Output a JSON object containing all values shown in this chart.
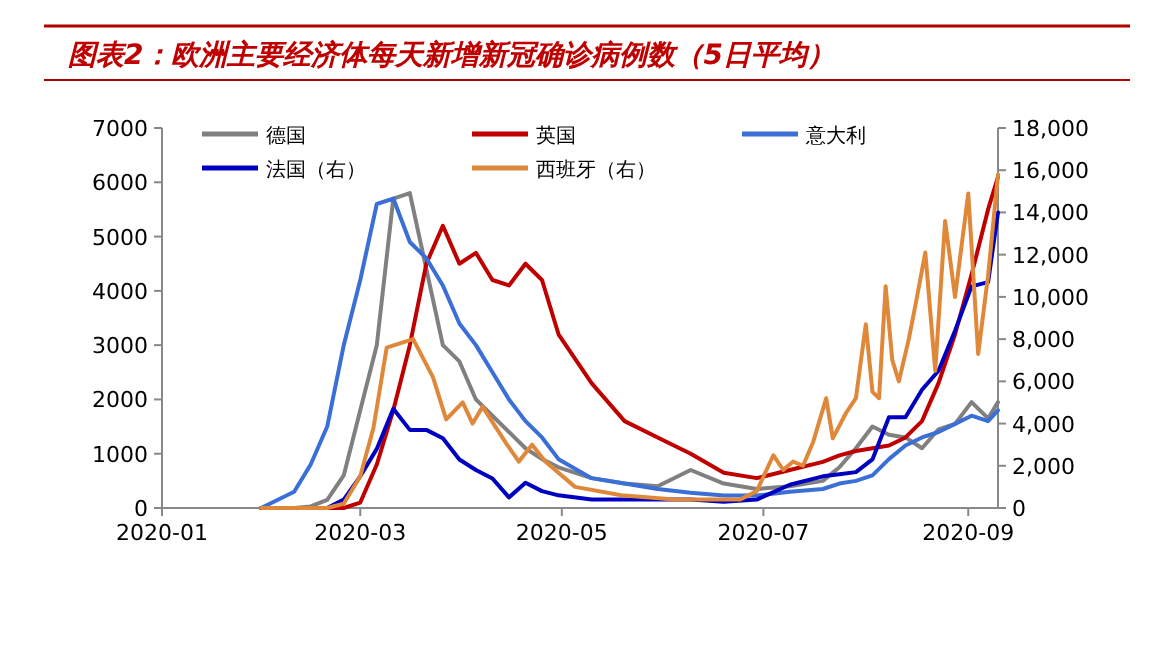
{
  "chart_data": {
    "type": "line",
    "title": "图表2：欧洲主要经济体每天新增新冠确诊病例数（5日平均）",
    "x": [
      "2020-01-31",
      "2020-02-10",
      "2020-02-15",
      "2020-02-20",
      "2020-02-25",
      "2020-03-01",
      "2020-03-06",
      "2020-03-11",
      "2020-03-16",
      "2020-03-21",
      "2020-03-26",
      "2020-03-31",
      "2020-04-05",
      "2020-04-10",
      "2020-04-15",
      "2020-04-20",
      "2020-04-25",
      "2020-04-30",
      "2020-05-10",
      "2020-05-20",
      "2020-05-30",
      "2020-06-09",
      "2020-06-19",
      "2020-06-29",
      "2020-07-09",
      "2020-07-19",
      "2020-07-24",
      "2020-07-29",
      "2020-08-03",
      "2020-08-08",
      "2020-08-13",
      "2020-08-18",
      "2020-08-23",
      "2020-08-28",
      "2020-09-02",
      "2020-09-07",
      "2020-09-10"
    ],
    "series": [
      {
        "name": "德国",
        "color": "#808080",
        "values": [
          0,
          0,
          30,
          150,
          600,
          1800,
          3000,
          5700,
          5800,
          4400,
          3000,
          2700,
          2000,
          1700,
          1400,
          1100,
          900,
          750,
          550,
          450,
          400,
          700,
          450,
          350,
          400,
          500,
          750,
          1100,
          1500,
          1350,
          1300,
          1100,
          1450,
          1550,
          1950,
          1650,
          1950
        ]
      },
      {
        "name": "英国",
        "color": "#c00000",
        "values": [
          null,
          null,
          0,
          0,
          0,
          100,
          800,
          1800,
          3000,
          4500,
          5200,
          4500,
          4700,
          4200,
          4100,
          4500,
          4200,
          3200,
          2300,
          1600,
          1300,
          1000,
          650,
          550,
          700,
          850,
          970,
          1050,
          1100,
          1150,
          1300,
          1600,
          2300,
          3200,
          4300,
          5500,
          6100
        ]
      },
      {
        "name": "意大利",
        "color": "#3a6fd8",
        "values": [
          0,
          300,
          800,
          1500,
          3000,
          4200,
          5600,
          5700,
          4900,
          4600,
          4100,
          3400,
          3000,
          2500,
          2000,
          1600,
          1300,
          900,
          550,
          450,
          350,
          280,
          230,
          230,
          300,
          350,
          450,
          500,
          600,
          900,
          1150,
          1300,
          1400,
          1550,
          1700,
          1600,
          1800
        ]
      },
      {
        "name": "法国（右）",
        "color": "#0000c0",
        "axis": "y2",
        "values": [
          0,
          0,
          0,
          0,
          400,
          1500,
          2800,
          4700,
          3700,
          3700,
          3300,
          2300,
          1800,
          1400,
          500,
          1200,
          800,
          600,
          400,
          400,
          400,
          400,
          300,
          400,
          1100,
          1500,
          1600,
          1700,
          2300,
          4300,
          4300,
          5600,
          6500,
          8400,
          10500,
          10700,
          14000
        ]
      },
      {
        "name": "西班牙（右）",
        "color": "#e0883a",
        "axis": "y2",
        "x": [
          "2020-01-31",
          "2020-02-20",
          "2020-02-25",
          "2020-03-01",
          "2020-03-05",
          "2020-03-09",
          "2020-03-13",
          "2020-03-17",
          "2020-03-23",
          "2020-03-27",
          "2020-04-01",
          "2020-04-04",
          "2020-04-07",
          "2020-04-14",
          "2020-04-18",
          "2020-04-22",
          "2020-04-26",
          "2020-05-05",
          "2020-05-19",
          "2020-06-04",
          "2020-06-24",
          "2020-06-29",
          "2020-07-04",
          "2020-07-07",
          "2020-07-10",
          "2020-07-13",
          "2020-07-16",
          "2020-07-20",
          "2020-07-22",
          "2020-07-26",
          "2020-07-29",
          "2020-08-01",
          "2020-08-03",
          "2020-08-05",
          "2020-08-07",
          "2020-08-09",
          "2020-08-11",
          "2020-08-14",
          "2020-08-16",
          "2020-08-19",
          "2020-08-22",
          "2020-08-25",
          "2020-08-28",
          "2020-09-01",
          "2020-09-04",
          "2020-09-07",
          "2020-09-10"
        ],
        "values": [
          0,
          0,
          200,
          1500,
          3800,
          7600,
          7800,
          8000,
          6200,
          4200,
          5000,
          4000,
          4800,
          3100,
          2200,
          3000,
          2200,
          1000,
          600,
          400,
          400,
          800,
          2500,
          1800,
          2200,
          2000,
          3100,
          5200,
          3300,
          4500,
          5200,
          8700,
          5500,
          5200,
          10500,
          7000,
          6000,
          8000,
          9600,
          12100,
          6500,
          13600,
          10000,
          14900,
          7300,
          11000,
          15800
        ]
      }
    ],
    "xlim": [
      "2020-01-01",
      "2020-09-10"
    ],
    "xticks": [
      {
        "value": "2020-01-01",
        "label": "2020-01"
      },
      {
        "value": "2020-03-01",
        "label": "2020-03"
      },
      {
        "value": "2020-05-01",
        "label": "2020-05"
      },
      {
        "value": "2020-07-01",
        "label": "2020-07"
      },
      {
        "value": "2020-09-01",
        "label": "2020-09"
      }
    ],
    "ylim": [
      0,
      7000
    ],
    "yticks": [
      0,
      1000,
      2000,
      3000,
      4000,
      5000,
      6000,
      7000
    ],
    "y2lim": [
      0,
      18000
    ],
    "y2ticks": [
      0,
      {
        "value": 2000,
        "label": "2,000"
      },
      {
        "value": 4000,
        "label": "4,000"
      },
      {
        "value": 6000,
        "label": "6,000"
      },
      {
        "value": 8000,
        "label": "8,000"
      },
      {
        "value": 10000,
        "label": "10,000"
      },
      {
        "value": 12000,
        "label": "12,000"
      },
      {
        "value": 14000,
        "label": "14,000"
      },
      {
        "value": 16000,
        "label": "16,000"
      },
      {
        "value": 18000,
        "label": "18,000"
      }
    ],
    "legend": "top",
    "grid": false,
    "marker": "none",
    "line_style": "solid"
  }
}
